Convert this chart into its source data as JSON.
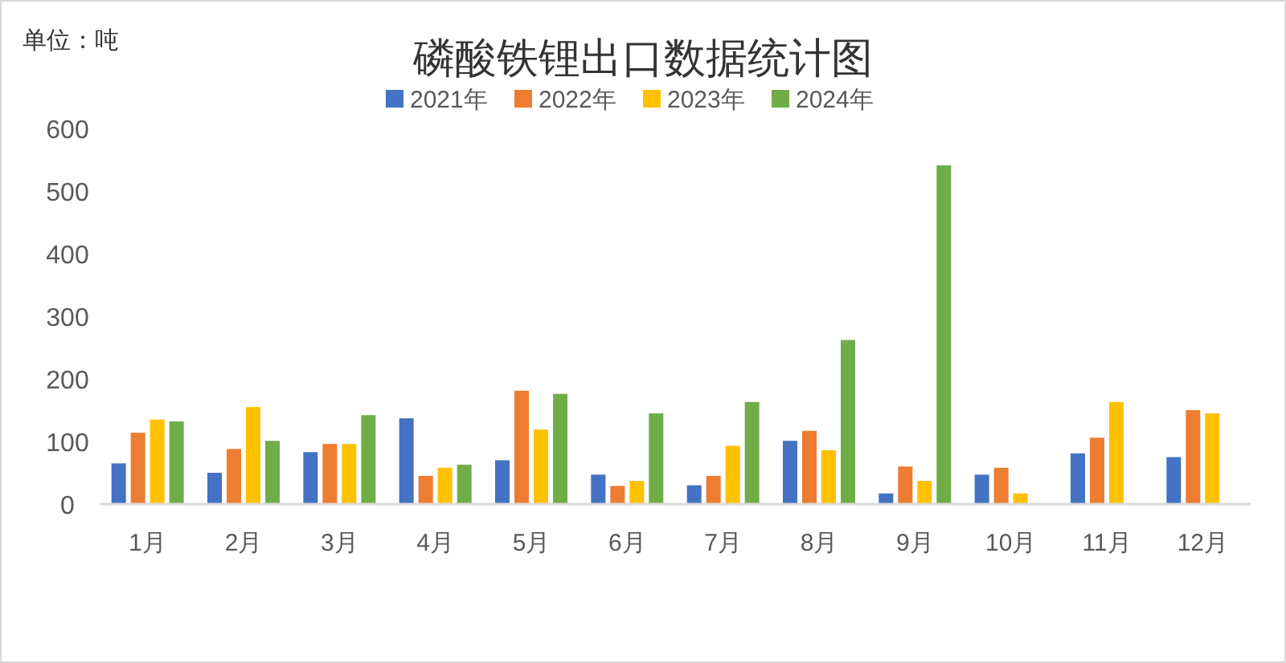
{
  "chart_data": {
    "type": "bar",
    "title": "磷酸铁锂出口数据统计图",
    "ylabel": "单位：吨",
    "categories": [
      "1月",
      "2月",
      "3月",
      "4月",
      "5月",
      "6月",
      "7月",
      "8月",
      "9月",
      "10月",
      "11月",
      "12月"
    ],
    "series": [
      {
        "name": "2021年",
        "color": "#4472c4",
        "values": [
          65,
          50,
          83,
          137,
          70,
          47,
          30,
          101,
          17,
          47,
          81,
          75
        ]
      },
      {
        "name": "2022年",
        "color": "#ed7d31",
        "values": [
          114,
          88,
          96,
          45,
          181,
          29,
          45,
          117,
          60,
          58,
          106,
          150
        ]
      },
      {
        "name": "2023年",
        "color": "#ffc000",
        "values": [
          135,
          155,
          96,
          58,
          119,
          37,
          93,
          86,
          37,
          17,
          163,
          145
        ]
      },
      {
        "name": "2024年",
        "color": "#70ad47",
        "values": [
          132,
          101,
          142,
          63,
          176,
          145,
          163,
          262,
          541,
          null,
          null,
          null
        ]
      }
    ],
    "ylim": [
      0,
      600
    ],
    "yticks": [
      0,
      100,
      200,
      300,
      400,
      500,
      600
    ],
    "legend": "top",
    "grid": false
  }
}
